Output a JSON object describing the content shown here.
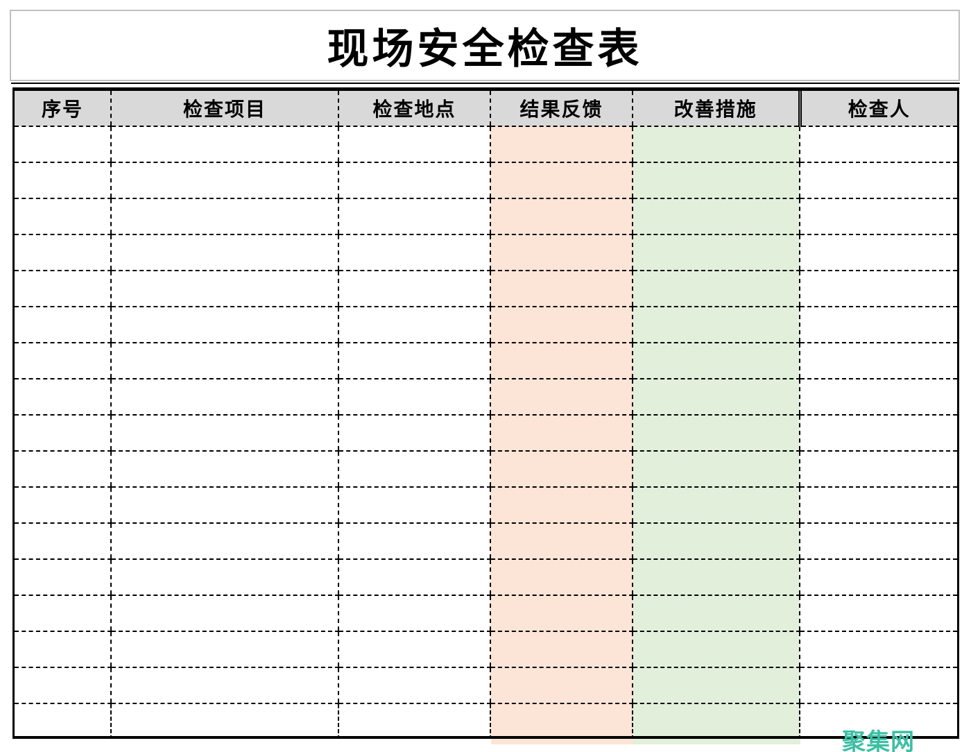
{
  "title": "现场安全检查表",
  "table": {
    "columns": [
      {
        "key": "index",
        "label": "序号"
      },
      {
        "key": "item",
        "label": "检查项目"
      },
      {
        "key": "location",
        "label": "检查地点"
      },
      {
        "key": "result",
        "label": "结果反馈"
      },
      {
        "key": "measure",
        "label": "改善措施"
      },
      {
        "key": "inspector",
        "label": "检查人"
      }
    ],
    "empty_row_count": 17
  },
  "watermark": {
    "text": "聚集网"
  },
  "colors": {
    "header_fill": "#D9D9D9",
    "result_fill": "#FCE4D6",
    "measure_fill": "#E2EFDA",
    "grid_line": "#000000",
    "title_box_border": "#BFBFBF",
    "watermark_color": "#3CBFA4"
  }
}
